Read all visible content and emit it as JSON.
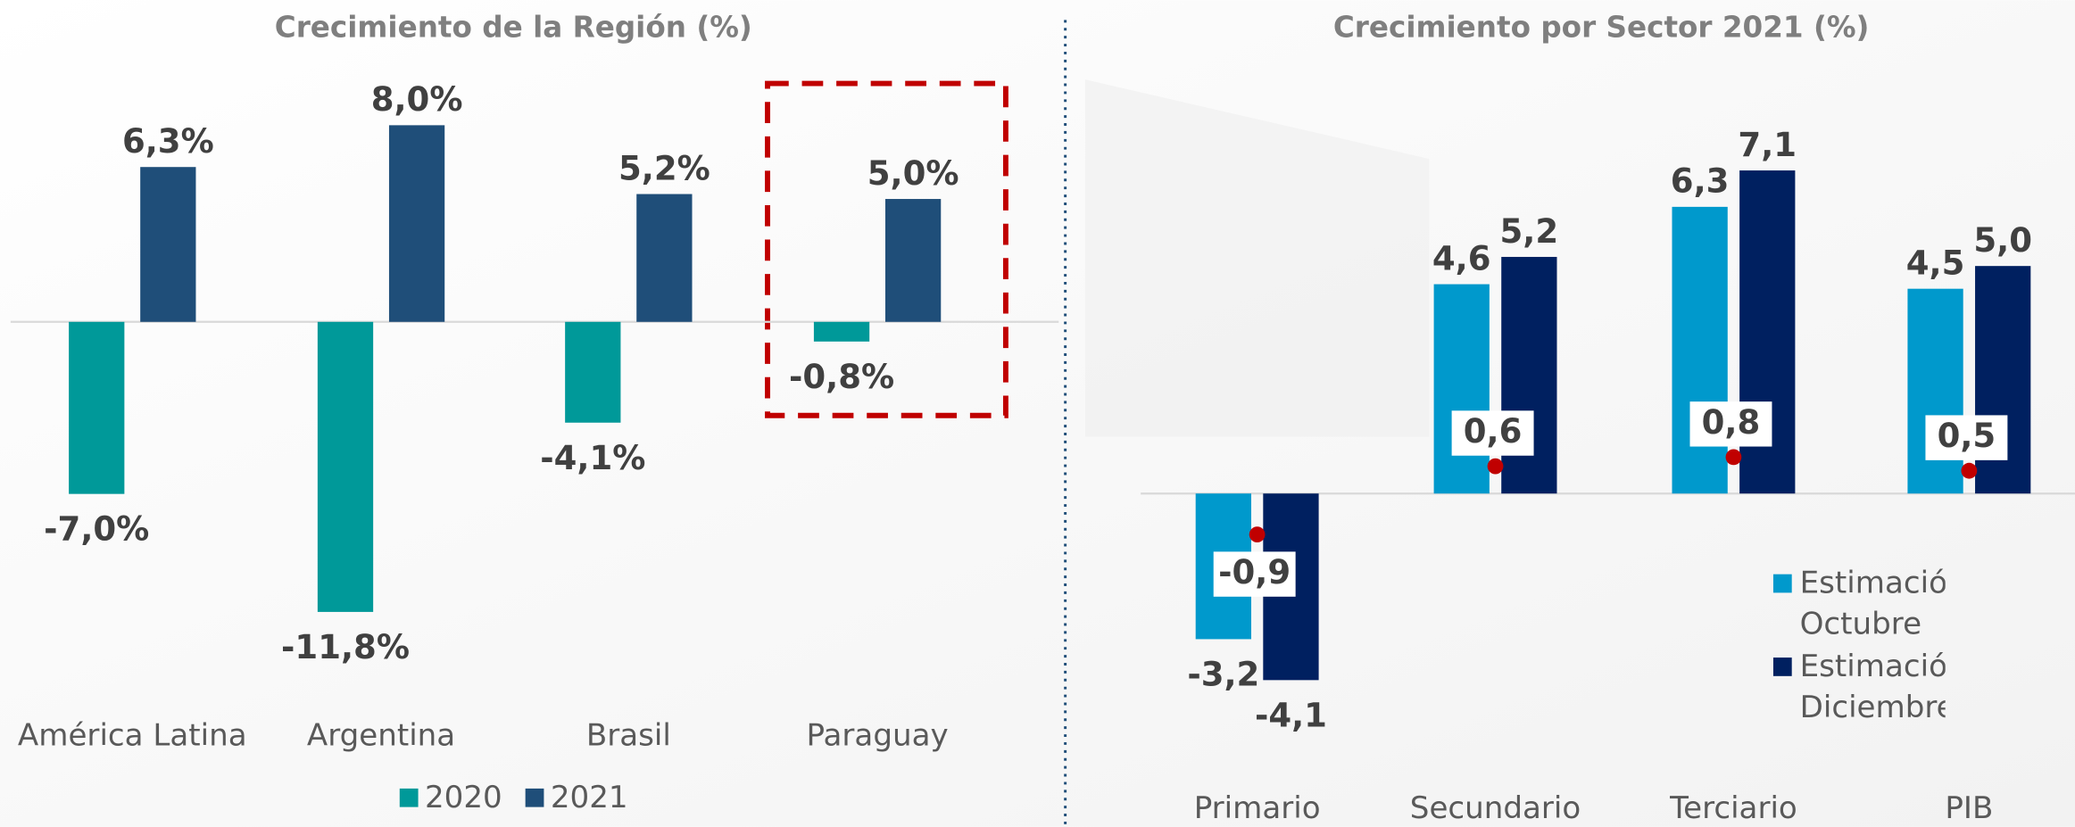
{
  "chart_data": [
    {
      "type": "bar",
      "title": "Crecimiento de la Región (%)",
      "categories": [
        "América Latina",
        "Argentina",
        "Brasil",
        "Paraguay"
      ],
      "series": [
        {
          "name": "2020",
          "color": "#009999",
          "values": [
            -7.0,
            -11.8,
            -4.1,
            -0.8
          ],
          "value_labels": [
            "-7,0%",
            "-11,8%",
            "-4,1%",
            "-0,8%"
          ]
        },
        {
          "name": "2021",
          "color": "#1f4e79",
          "values": [
            6.3,
            8.0,
            5.2,
            5.0
          ],
          "value_labels": [
            "6,3%",
            "8,0%",
            "5,2%",
            "5,0%"
          ]
        }
      ],
      "ylim": [
        -12.5,
        9
      ],
      "legend": "bottom"
    },
    {
      "type": "bar",
      "title": "Crecimiento por Sector 2021 (%)",
      "categories": [
        "Primario",
        "Secundario",
        "Terciario",
        "PIB"
      ],
      "series": [
        {
          "name": "Estimación Octubre",
          "color": "#0099cc",
          "values": [
            -3.2,
            4.6,
            6.3,
            4.5
          ],
          "value_labels": [
            "-3,2",
            "4,6",
            "6,3",
            "4,5"
          ]
        },
        {
          "name": "Estimación Diciembre",
          "color": "#002060",
          "values": [
            -4.1,
            5.2,
            7.1,
            5.0
          ],
          "value_labels": [
            "-4,1",
            "5,2",
            "7,1",
            "5,0"
          ]
        }
      ],
      "differences": {
        "color": "#c00000",
        "values": [
          -0.9,
          0.6,
          0.8,
          0.5
        ],
        "value_labels": [
          "-0,9",
          "0,6",
          "0,8",
          "0,5"
        ]
      },
      "ylim": [
        -5,
        8.5
      ],
      "legend": "right"
    }
  ]
}
